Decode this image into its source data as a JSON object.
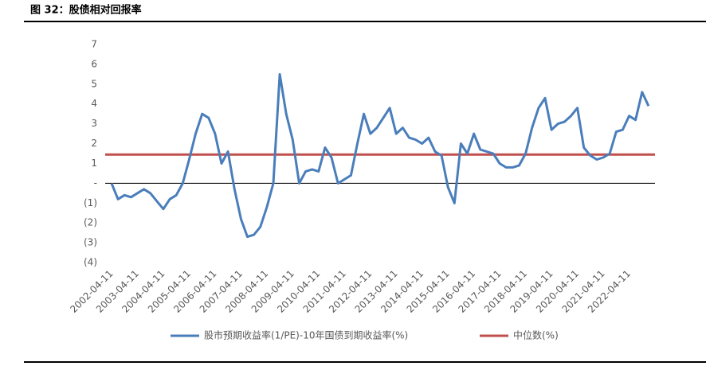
{
  "chart_data": {
    "type": "line",
    "title": "图 32：股债相对回报率",
    "categories": [
      "2002-04-11",
      null,
      null,
      null,
      "2003-04-11",
      null,
      null,
      null,
      "2004-04-11",
      null,
      null,
      null,
      "2005-04-11",
      null,
      null,
      null,
      "2006-04-11",
      null,
      null,
      null,
      "2007-04-11",
      null,
      null,
      null,
      "2008-04-11",
      null,
      null,
      null,
      "2009-04-11",
      null,
      null,
      null,
      "2010-04-11",
      null,
      null,
      null,
      "2011-04-11",
      null,
      null,
      null,
      "2012-04-11",
      null,
      null,
      null,
      "2013-04-11",
      null,
      null,
      null,
      "2014-04-11",
      null,
      null,
      null,
      "2015-04-11",
      null,
      null,
      null,
      "2016-04-11",
      null,
      null,
      null,
      "2017-04-11",
      null,
      null,
      null,
      "2018-04-11",
      null,
      null,
      null,
      "2019-04-11",
      null,
      null,
      null,
      "2020-04-11",
      null,
      null,
      null,
      "2021-04-11",
      null,
      null,
      null,
      "2022-04-11",
      null,
      null,
      null
    ],
    "series": [
      {
        "name": "股市预期收益率(1/PE)-10年国债到期收益率(%)",
        "color": "#4a7ebb",
        "values": [
          0.0,
          -0.8,
          -0.6,
          -0.7,
          -0.5,
          -0.3,
          -0.5,
          -0.9,
          -1.3,
          -0.8,
          -0.6,
          0.0,
          1.2,
          2.5,
          3.5,
          3.3,
          2.5,
          1.0,
          1.6,
          -0.3,
          -1.8,
          -2.7,
          -2.6,
          -2.2,
          -1.2,
          0.0,
          5.5,
          3.5,
          2.2,
          0.0,
          0.6,
          0.7,
          0.6,
          1.8,
          1.3,
          0.0,
          0.2,
          0.4,
          2.0,
          3.5,
          2.5,
          2.8,
          3.3,
          3.8,
          2.5,
          2.8,
          2.3,
          2.2,
          2.0,
          2.3,
          1.6,
          1.4,
          -0.2,
          -1.0,
          2.0,
          1.5,
          2.5,
          1.7,
          1.6,
          1.5,
          1.0,
          0.8,
          0.8,
          0.9,
          1.5,
          2.8,
          3.8,
          4.3,
          2.7,
          3.0,
          3.1,
          3.4,
          3.8,
          1.8,
          1.4,
          1.2,
          1.3,
          1.5,
          2.6,
          2.7,
          3.4,
          3.2,
          4.6,
          3.9
        ]
      }
    ],
    "reference_lines": [
      {
        "name": "中位数(%)",
        "value": 1.45,
        "color": "#c0504d"
      }
    ],
    "ylim": [
      -4,
      7
    ],
    "yticks": [
      {
        "value": -4,
        "label": "(4)"
      },
      {
        "value": -3,
        "label": "(3)"
      },
      {
        "value": -2,
        "label": "(2)"
      },
      {
        "value": -1,
        "label": "(1)"
      },
      {
        "value": 0,
        "label": "-"
      },
      1,
      2,
      3,
      4,
      5,
      6,
      7
    ]
  }
}
